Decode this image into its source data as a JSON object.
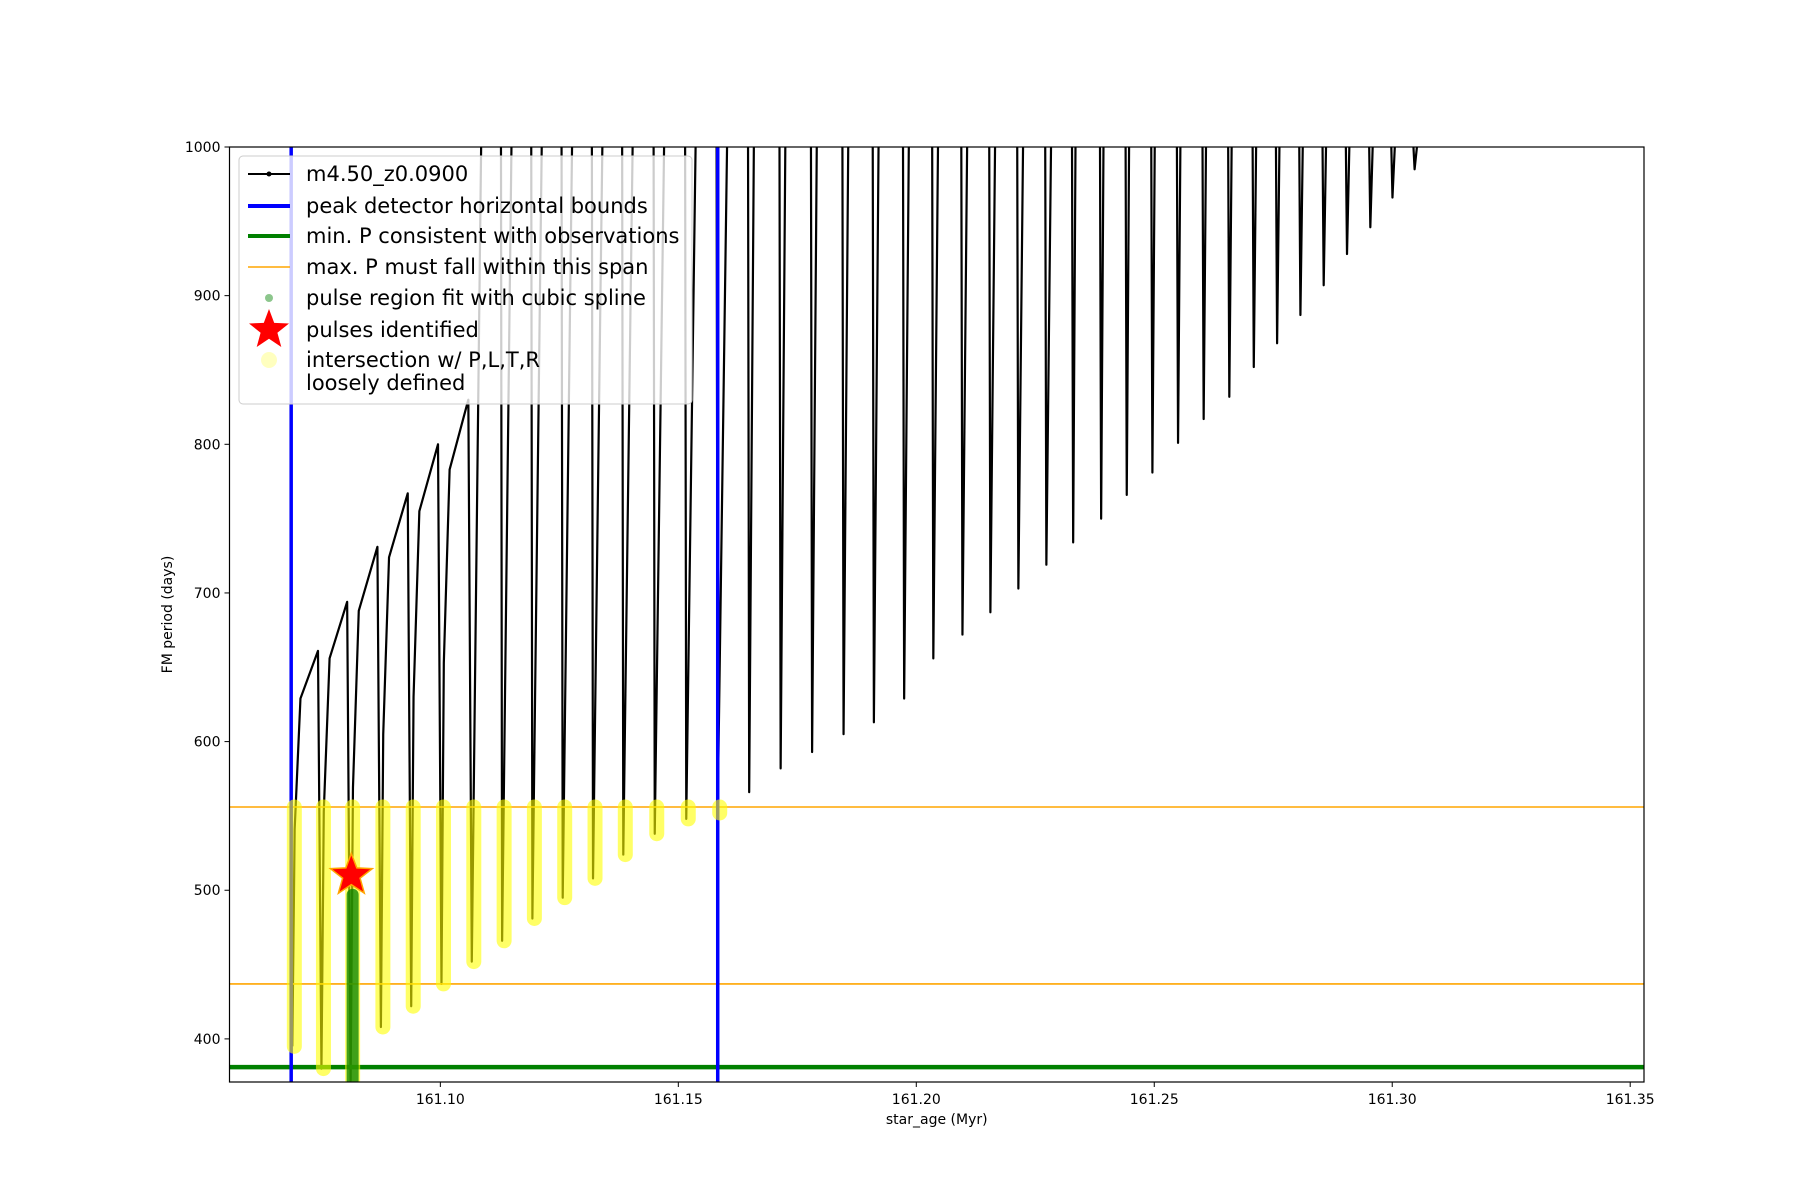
{
  "chart_data": {
    "type": "line",
    "x_label": "star_age (Myr)",
    "y_label": "FM period (days)",
    "xlim": [
      161.0557,
      161.3529
    ],
    "ylim": [
      371,
      1000
    ],
    "xticks": [
      {
        "value": 161.1,
        "label": "161.10"
      },
      161.15,
      {
        "value": 161.2,
        "label": "161.20"
      },
      161.25,
      {
        "value": 161.3,
        "label": "161.30"
      },
      161.35
    ],
    "yticks": [
      400,
      500,
      600,
      700,
      800,
      900,
      1000
    ],
    "series": [
      {
        "name": "m4.50_z0.0900",
        "type": "line",
        "color": "#000000",
        "x": [
          161.0689,
          161.06939,
          161.07061,
          161.07429,
          161.07502,
          161.07551,
          161.07673,
          161.08042,
          161.08115,
          161.08164,
          161.08286,
          161.08678,
          161.08751,
          161.088,
          161.08922,
          161.09315,
          161.09388,
          161.09437,
          161.09559,
          161.09951,
          161.10024,
          161.10073,
          161.10195,
          161.10588,
          161.10661,
          161.10857,
          null,
          161.11274,
          161.11298,
          161.11494,
          null,
          161.1191,
          161.11934,
          161.1213,
          null,
          161.12547,
          161.12571,
          161.12767,
          null,
          161.13184,
          161.13208,
          161.13404,
          null,
          161.1382,
          161.13844,
          161.1404,
          null,
          161.14481,
          161.14505,
          161.14701,
          null,
          161.15143,
          161.15167,
          161.15363,
          null,
          161.15804,
          161.15828,
          161.16024,
          null,
          161.16465,
          161.16489,
          161.16587,
          null,
          161.17126,
          161.1715,
          161.17248,
          null,
          161.17787,
          161.17811,
          161.17909,
          null,
          161.18448,
          161.18472,
          161.1857,
          null,
          161.19085,
          161.19109,
          161.19207,
          null,
          161.19721,
          161.19745,
          161.19843,
          null,
          161.20334,
          161.20358,
          161.20456,
          null,
          161.20946,
          161.2097,
          161.21068,
          null,
          161.21533,
          161.21557,
          161.21655,
          null,
          161.22121,
          161.22145,
          161.22243,
          null,
          161.22709,
          161.22733,
          161.22831,
          null,
          161.23272,
          161.23296,
          161.23345,
          null,
          161.2386,
          161.23884,
          161.23933,
          null,
          161.24398,
          161.24422,
          161.24471,
          null,
          161.24937,
          161.24961,
          161.2501,
          null,
          161.25476,
          161.255,
          161.25549,
          null,
          161.26014,
          161.26038,
          161.26087,
          null,
          161.26553,
          161.26577,
          161.26626,
          null,
          161.27067,
          161.27091,
          161.2714,
          null,
          161.27557,
          161.27581,
          161.2763,
          null,
          161.28047,
          161.28071,
          161.2812,
          null,
          161.28536,
          161.2856,
          161.28609,
          null,
          161.29026,
          161.2905,
          161.29099,
          null,
          161.29516,
          161.2954,
          161.29589,
          null,
          161.29981,
          161.30005,
          161.30054,
          null,
          161.30446,
          161.3047,
          161.30519
        ],
        "values": [
          395,
          541,
          629,
          661,
          380,
          553,
          656,
          694,
          372,
          569,
          688,
          731,
          408,
          605,
          724,
          767,
          422,
          630,
          755,
          800,
          437,
          653,
          783,
          830,
          452,
          1000,
          null,
          1000,
          466,
          1000,
          null,
          1000,
          481,
          1000,
          null,
          1000,
          495,
          1000,
          null,
          1000,
          508,
          1000,
          null,
          1000,
          524,
          1000,
          null,
          1000,
          538,
          1000,
          null,
          1000,
          548,
          1000,
          null,
          1000,
          556,
          1000,
          null,
          1000,
          566,
          1000,
          null,
          1000,
          582,
          1000,
          null,
          1000,
          593,
          1000,
          null,
          1000,
          605,
          1000,
          null,
          1000,
          613,
          1000,
          null,
          1000,
          629,
          1000,
          null,
          1000,
          656,
          1000,
          null,
          1000,
          672,
          1000,
          null,
          1000,
          687,
          1000,
          null,
          1000,
          703,
          1000,
          null,
          1000,
          719,
          1000,
          null,
          1000,
          734,
          1000,
          null,
          1000,
          750,
          1000,
          null,
          1000,
          766,
          1000,
          null,
          1000,
          781,
          1000,
          null,
          1000,
          801,
          1000,
          null,
          1000,
          817,
          1000,
          null,
          1000,
          832,
          1000,
          null,
          1000,
          852,
          1000,
          null,
          1000,
          868,
          1000,
          null,
          1000,
          887,
          1000,
          null,
          1000,
          907,
          1000,
          null,
          1000,
          928,
          1000,
          null,
          1000,
          946,
          1000,
          null,
          1000,
          966,
          1000,
          null,
          1000,
          985,
          1000
        ]
      },
      {
        "name": "peak detector horizontal bounds",
        "type": "vline",
        "color": "#0000ff",
        "x": [
          161.06866,
          161.15828
        ]
      },
      {
        "name": "min. P consistent with observations",
        "type": "hline",
        "color": "#008000",
        "values": [
          381
        ]
      },
      {
        "name": "max. P must fall within this span",
        "type": "hline",
        "color": "#ffa500",
        "values": [
          437,
          556
        ]
      },
      {
        "name": "pulse region fit with cubic spline",
        "type": "range",
        "color": "#008000",
        "x": [
          161.08115
        ],
        "low": [
          372
        ],
        "high": [
          497
        ]
      },
      {
        "name": "pulses identified",
        "type": "star",
        "color": "#ff0000",
        "x": [
          161.0813
        ],
        "values": [
          510
        ]
      },
      {
        "name": "intersection w/ P,L,T,R\nloosely defined",
        "type": "range",
        "color": "#ffff00",
        "x": [
          161.0689,
          161.07502,
          161.08115,
          161.08751,
          161.09388,
          161.10024,
          161.10661,
          161.11298,
          161.11934,
          161.12571,
          161.13208,
          161.13844,
          161.14505,
          161.15167,
          161.15828
        ],
        "low": [
          395,
          380,
          372,
          408,
          422,
          437,
          452,
          466,
          481,
          495,
          508,
          524,
          538,
          548,
          552
        ],
        "high": [
          556,
          556,
          556,
          556,
          556,
          556,
          556,
          556,
          556,
          556,
          556,
          556,
          556,
          556,
          556
        ]
      }
    ]
  }
}
